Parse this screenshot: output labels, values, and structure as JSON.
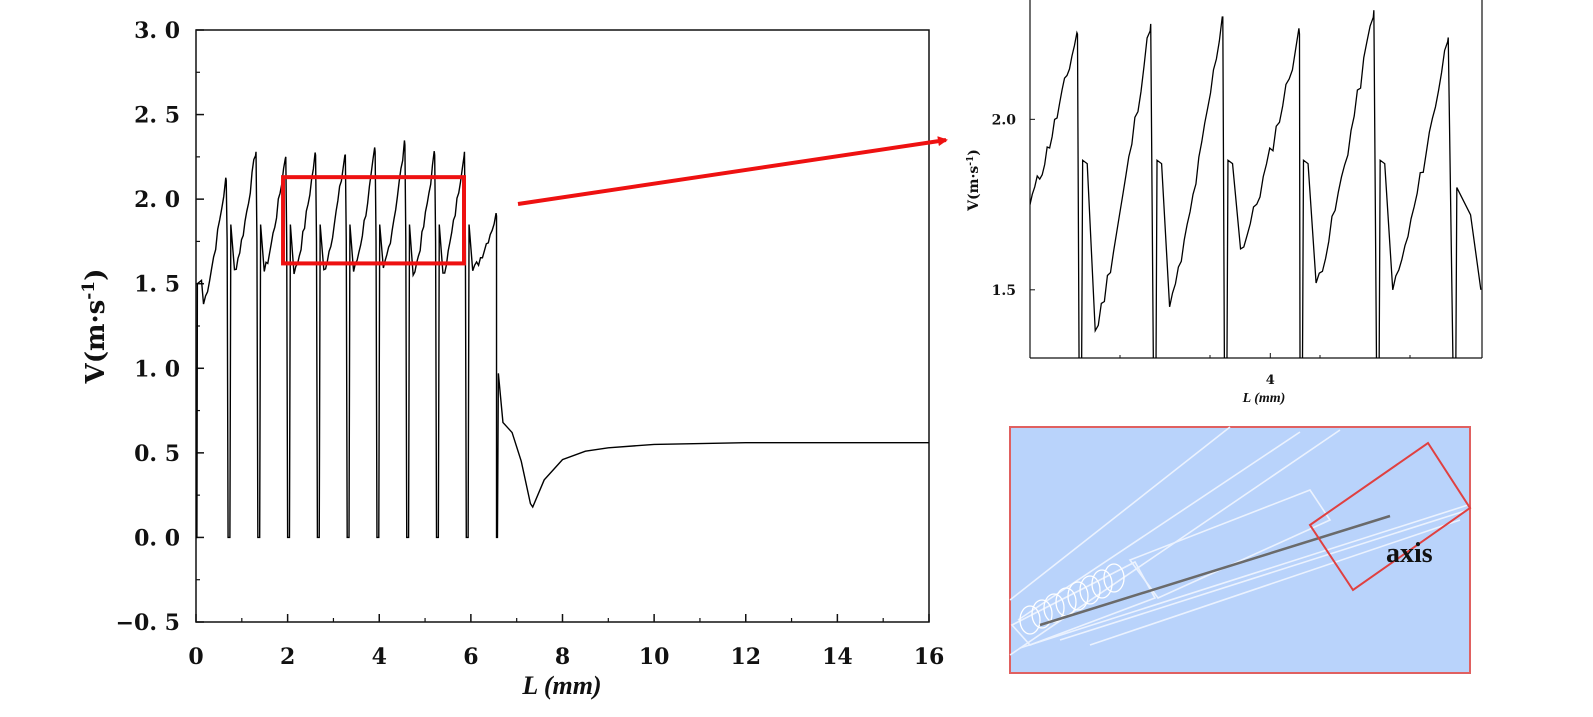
{
  "chart_data": [
    {
      "type": "line",
      "xlabel": "L (mm)",
      "ylabel": "V(m·s",
      "ylabel_sup": "-1",
      "ylabel_close": ")",
      "xlim": [
        0,
        16
      ],
      "ylim": [
        -0.5,
        3.0
      ],
      "x_ticks": [
        0,
        2,
        4,
        6,
        8,
        10,
        12,
        14,
        16
      ],
      "x_tick_labels": [
        "0",
        "2",
        "4",
        "6",
        "8",
        "10",
        "12",
        "14",
        "16"
      ],
      "y_ticks": [
        -0.5,
        0.0,
        0.5,
        1.0,
        1.5,
        2.0,
        2.5,
        3.0
      ],
      "y_tick_labels": [
        "−0. 5",
        "0. 0",
        "0. 5",
        "1. 0",
        "1. 5",
        "2. 0",
        "2. 5",
        "3. 0"
      ],
      "grid": false,
      "oscillation_peaks": [
        {
          "x": 0.65,
          "y": 2.11
        },
        {
          "x": 1.3,
          "y": 2.28
        },
        {
          "x": 1.95,
          "y": 2.25
        },
        {
          "x": 2.6,
          "y": 2.26
        },
        {
          "x": 3.25,
          "y": 2.26
        },
        {
          "x": 3.9,
          "y": 2.28
        },
        {
          "x": 4.55,
          "y": 2.32
        },
        {
          "x": 5.2,
          "y": 2.26
        },
        {
          "x": 5.85,
          "y": 2.28
        },
        {
          "x": 6.55,
          "y": 1.9
        }
      ],
      "decay_points": [
        {
          "x": 6.6,
          "y": 0.97
        },
        {
          "x": 6.7,
          "y": 0.68
        },
        {
          "x": 6.9,
          "y": 0.62
        },
        {
          "x": 7.1,
          "y": 0.45
        },
        {
          "x": 7.3,
          "y": 0.2
        },
        {
          "x": 7.35,
          "y": 0.18
        },
        {
          "x": 7.6,
          "y": 0.34
        },
        {
          "x": 8.0,
          "y": 0.46
        },
        {
          "x": 8.5,
          "y": 0.51
        },
        {
          "x": 9.0,
          "y": 0.53
        },
        {
          "x": 10.0,
          "y": 0.55
        },
        {
          "x": 12.0,
          "y": 0.56
        },
        {
          "x": 14.0,
          "y": 0.56
        },
        {
          "x": 16.0,
          "y": 0.56
        }
      ],
      "zoom_box": {
        "x": [
          1.9,
          5.85
        ],
        "y": [
          1.62,
          2.13
        ]
      },
      "highlight_color": "#ff0000"
    },
    {
      "type": "line",
      "xlabel": "L (mm)",
      "ylabel": "V(m·s",
      "ylabel_sup": "-1",
      "ylabel_close": ")",
      "xlim": [
        1.9,
        5.85
      ],
      "ylim": [
        1.3,
        2.35
      ],
      "x_ticks": [
        4
      ],
      "x_tick_labels": [
        "4"
      ],
      "y_ticks": [
        1.5,
        2.0
      ],
      "y_tick_labels": [
        "1.5",
        "2.0"
      ],
      "grid": false
    }
  ],
  "inset": {
    "label": "axis",
    "background": "#b9d3fb",
    "border": "#e06060"
  }
}
